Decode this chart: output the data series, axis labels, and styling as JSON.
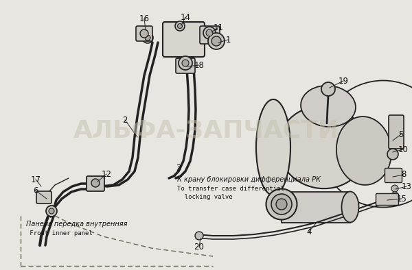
{
  "bg_color": "#e8e6e0",
  "fig_width": 6.0,
  "fig_height": 3.94,
  "dpi": 100,
  "watermark": "АЛЬФА-ЗАПЧАСТИ",
  "watermark_color": "#c8c0b0",
  "watermark_alpha": 0.5,
  "label_text_ru1": "К крану блокировки дифференциала РК",
  "label_text_en1": "To transfer case differential",
  "label_text_en2": "  locking valve",
  "label_text_ru2": "Панель передка внутренняя",
  "label_text_en3": " Front inner panel",
  "line_color": "#222222",
  "part_color": "#111111"
}
